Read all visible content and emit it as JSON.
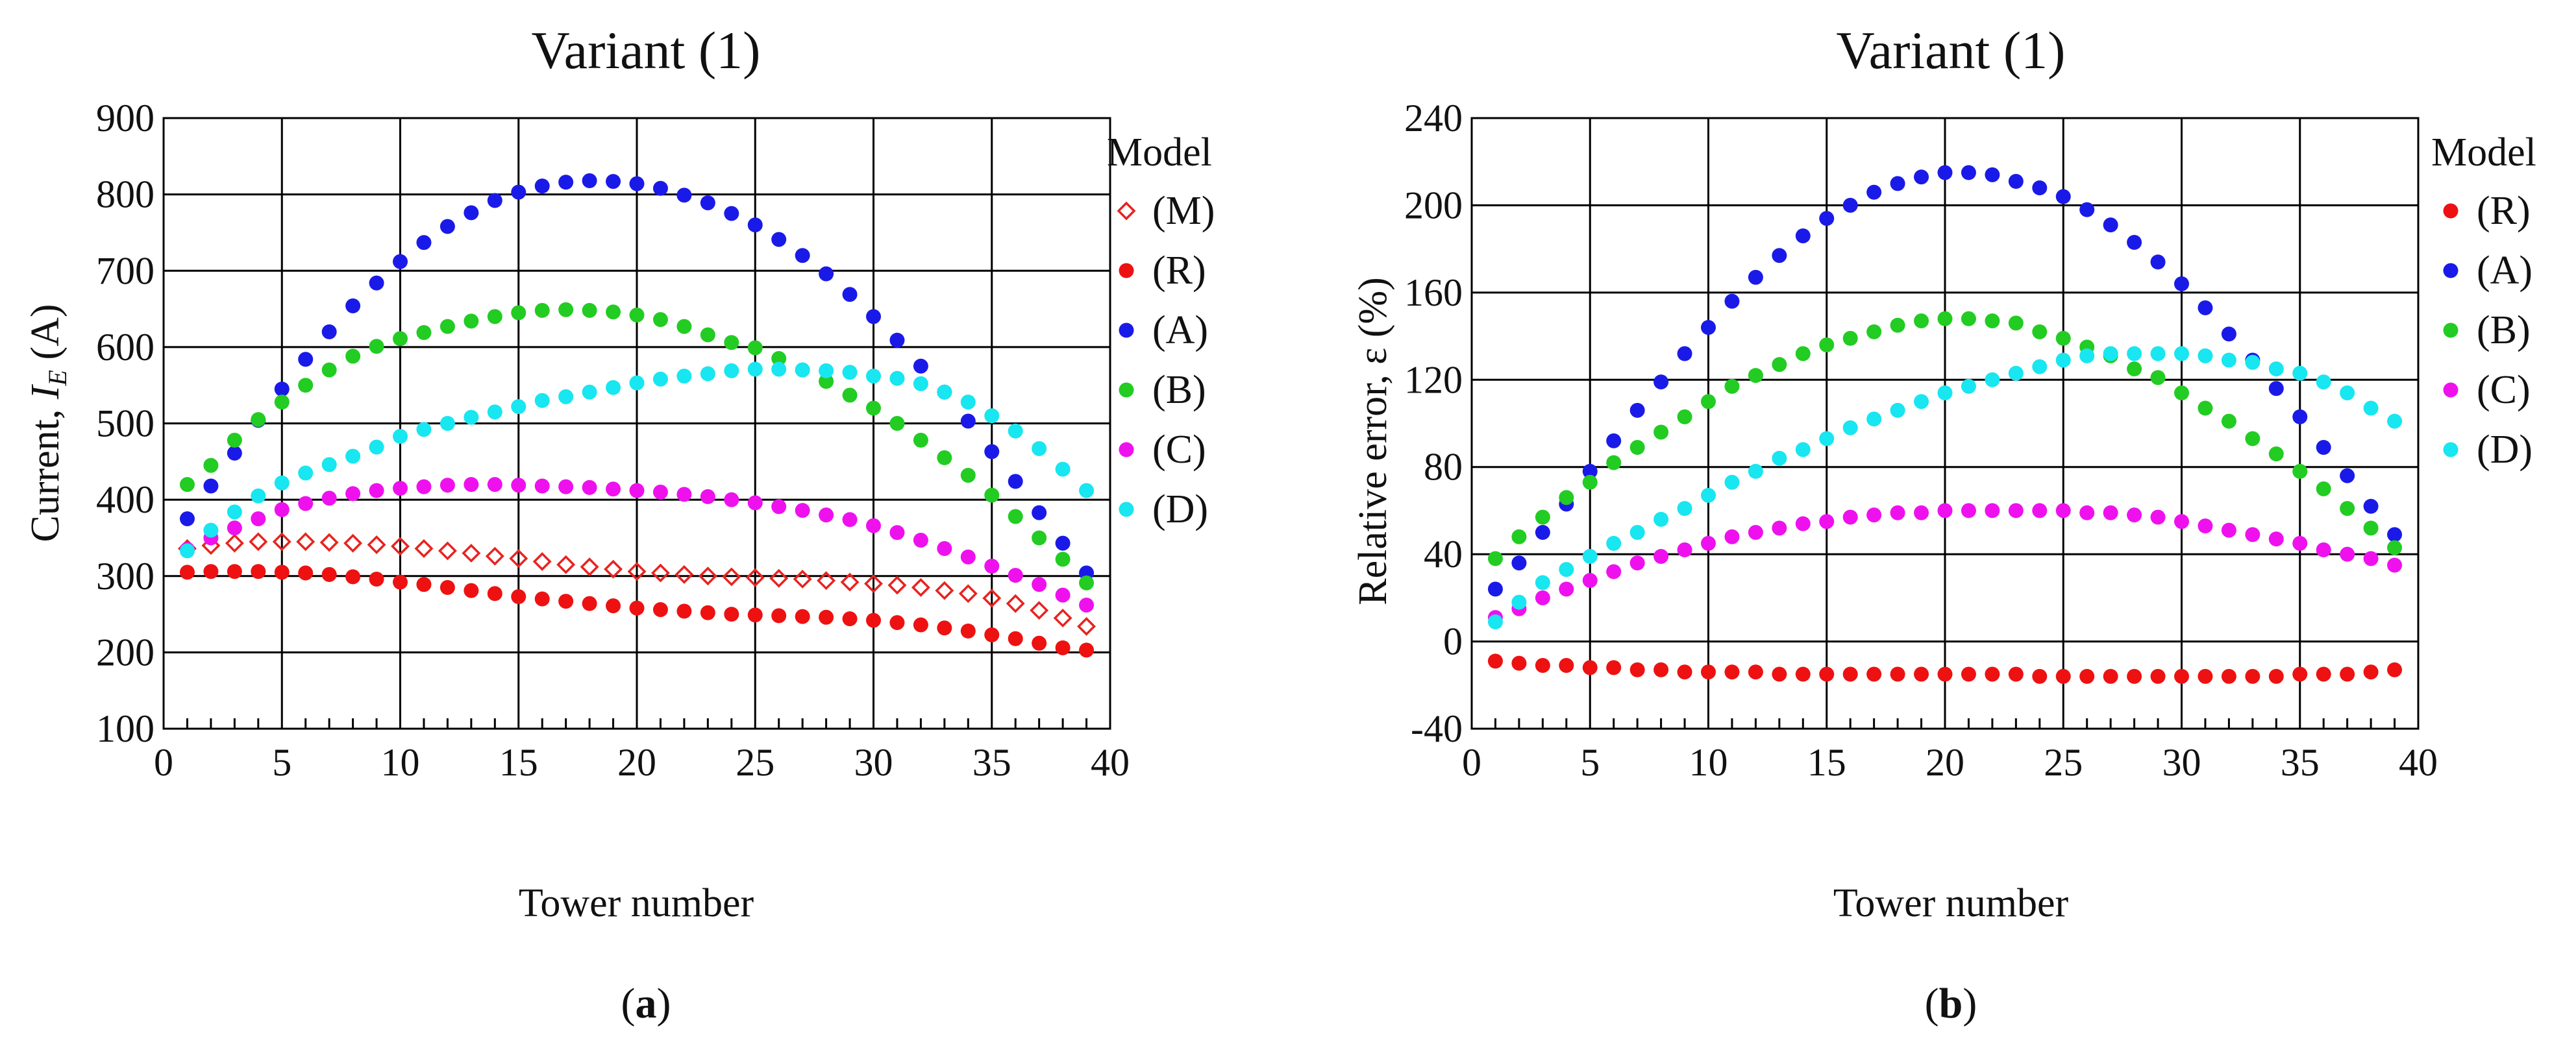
{
  "chart_data": [
    {
      "id": "a",
      "type": "scatter",
      "title": "Variant (1)",
      "xlabel": "Tower number",
      "ylabel": "Current, I_E (A)",
      "ylabel_main": "Current, ",
      "ylabel_var": "I",
      "ylabel_sub": "E",
      "ylabel_unit": " (A)",
      "xlim": [
        0,
        40
      ],
      "ylim": [
        100,
        900
      ],
      "xticks": [
        0,
        5,
        10,
        15,
        20,
        25,
        30,
        35,
        40
      ],
      "yticks": [
        100,
        200,
        300,
        400,
        500,
        600,
        700,
        800,
        900
      ],
      "grid": true,
      "legend_title": "Model",
      "legend_position": "right",
      "caption_open": "(",
      "caption_letter": "a",
      "caption_close": ")",
      "x": [
        1,
        2,
        3,
        4,
        5,
        6,
        7,
        8,
        9,
        10,
        11,
        12,
        13,
        14,
        15,
        16,
        17,
        18,
        19,
        20,
        21,
        22,
        23,
        24,
        25,
        26,
        27,
        28,
        29,
        30,
        31,
        32,
        33,
        34,
        35,
        36,
        37,
        38,
        39
      ],
      "series": [
        {
          "name": "(M)",
          "color": "#e8231f",
          "marker": "diamond-open",
          "values": [
            336,
            340,
            343,
            345,
            345,
            345,
            344,
            343,
            341,
            339,
            336,
            333,
            330,
            326,
            323,
            319,
            315,
            312,
            309,
            306,
            304,
            302,
            300,
            299,
            298,
            297,
            296,
            294,
            292,
            290,
            288,
            285,
            281,
            277,
            271,
            264,
            255,
            245,
            234
          ]
        },
        {
          "name": "(R)",
          "color": "#ee1111",
          "marker": "dot",
          "values": [
            305,
            306,
            306,
            306,
            305,
            304,
            302,
            299,
            296,
            292,
            289,
            285,
            281,
            277,
            273,
            270,
            267,
            264,
            261,
            258,
            256,
            254,
            252,
            250,
            249,
            248,
            247,
            246,
            244,
            242,
            239,
            236,
            232,
            228,
            223,
            218,
            212,
            206,
            203
          ]
        },
        {
          "name": "(A)",
          "color": "#1a1ae8",
          "marker": "dot",
          "values": [
            375,
            418,
            461,
            504,
            545,
            584,
            620,
            654,
            684,
            712,
            737,
            758,
            776,
            792,
            803,
            811,
            816,
            818,
            817,
            814,
            808,
            799,
            789,
            775,
            760,
            741,
            720,
            696,
            669,
            640,
            609,
            575,
            541,
            503,
            463,
            424,
            383,
            343,
            304
          ]
        },
        {
          "name": "(B)",
          "color": "#22cc22",
          "marker": "dot",
          "values": [
            420,
            445,
            478,
            505,
            528,
            550,
            570,
            588,
            601,
            611,
            619,
            627,
            634,
            640,
            645,
            648,
            649,
            648,
            646,
            642,
            636,
            627,
            616,
            606,
            599,
            585,
            570,
            555,
            537,
            520,
            500,
            478,
            455,
            432,
            406,
            378,
            350,
            322,
            291
          ]
        },
        {
          "name": "(C)",
          "color": "#ee11ee",
          "marker": "dot",
          "values": [
            335,
            350,
            363,
            375,
            387,
            395,
            402,
            408,
            412,
            415,
            417,
            419,
            420,
            420,
            419,
            418,
            417,
            416,
            414,
            412,
            410,
            407,
            404,
            400,
            396,
            391,
            386,
            380,
            374,
            366,
            357,
            347,
            336,
            325,
            313,
            301,
            289,
            275,
            262
          ]
        },
        {
          "name": "(D)",
          "color": "#18e6f0",
          "marker": "dot",
          "values": [
            333,
            360,
            384,
            405,
            422,
            435,
            446,
            457,
            469,
            483,
            492,
            500,
            508,
            515,
            522,
            530,
            535,
            541,
            547,
            553,
            558,
            562,
            565,
            569,
            571,
            571,
            570,
            569,
            567,
            562,
            559,
            552,
            541,
            528,
            510,
            490,
            467,
            440,
            412
          ]
        }
      ]
    },
    {
      "id": "b",
      "type": "scatter",
      "title": "Variant (1)",
      "xlabel": "Tower number",
      "ylabel": "Relative error, ε (%)",
      "xlim": [
        0,
        40
      ],
      "ylim": [
        -40,
        240
      ],
      "xticks": [
        0,
        5,
        10,
        15,
        20,
        25,
        30,
        35,
        40
      ],
      "yticks": [
        -40,
        0,
        40,
        80,
        120,
        160,
        200,
        240
      ],
      "grid": true,
      "legend_title": "Model",
      "legend_position": "right",
      "caption_open": "(",
      "caption_letter": "b",
      "caption_close": ")",
      "x": [
        1,
        2,
        3,
        4,
        5,
        6,
        7,
        8,
        9,
        10,
        11,
        12,
        13,
        14,
        15,
        16,
        17,
        18,
        19,
        20,
        21,
        22,
        23,
        24,
        25,
        26,
        27,
        28,
        29,
        30,
        31,
        32,
        33,
        34,
        35,
        36,
        37,
        38,
        39
      ],
      "series": [
        {
          "name": "(R)",
          "color": "#ee1111",
          "marker": "dot",
          "values": [
            -9,
            -10,
            -11,
            -11,
            -12,
            -12,
            -13,
            -13,
            -14,
            -14,
            -14,
            -14,
            -15,
            -15,
            -15,
            -15,
            -15,
            -15,
            -15,
            -15,
            -15,
            -15,
            -15,
            -16,
            -16,
            -16,
            -16,
            -16,
            -16,
            -16,
            -16,
            -16,
            -16,
            -16,
            -15,
            -15,
            -15,
            -14,
            -13
          ]
        },
        {
          "name": "(A)",
          "color": "#1a1ae8",
          "marker": "dot",
          "values": [
            24,
            36,
            50,
            63,
            78,
            92,
            106,
            119,
            132,
            144,
            156,
            167,
            177,
            186,
            194,
            200,
            206,
            210,
            213,
            215,
            215,
            214,
            211,
            208,
            204,
            198,
            191,
            183,
            174,
            164,
            153,
            141,
            129,
            116,
            103,
            89,
            76,
            62,
            49
          ]
        },
        {
          "name": "(B)",
          "color": "#22cc22",
          "marker": "dot",
          "values": [
            38,
            48,
            57,
            66,
            73,
            82,
            89,
            96,
            103,
            110,
            117,
            122,
            127,
            132,
            136,
            139,
            142,
            145,
            147,
            148,
            148,
            147,
            146,
            142,
            139,
            135,
            131,
            125,
            121,
            114,
            107,
            101,
            93,
            86,
            78,
            70,
            61,
            52,
            43
          ]
        },
        {
          "name": "(C)",
          "color": "#ee11ee",
          "marker": "dot",
          "values": [
            11,
            15,
            20,
            24,
            28,
            32,
            36,
            39,
            42,
            45,
            48,
            50,
            52,
            54,
            55,
            57,
            58,
            59,
            59,
            60,
            60,
            60,
            60,
            60,
            60,
            59,
            59,
            58,
            57,
            55,
            53,
            51,
            49,
            47,
            45,
            42,
            40,
            38,
            35
          ]
        },
        {
          "name": "(D)",
          "color": "#18e6f0",
          "marker": "dot",
          "values": [
            9,
            18,
            27,
            33,
            39,
            45,
            50,
            56,
            61,
            67,
            73,
            78,
            84,
            88,
            93,
            98,
            102,
            106,
            110,
            114,
            117,
            120,
            123,
            126,
            129,
            131,
            132,
            132,
            132,
            132,
            131,
            129,
            128,
            125,
            123,
            119,
            114,
            107,
            101
          ]
        }
      ]
    }
  ]
}
